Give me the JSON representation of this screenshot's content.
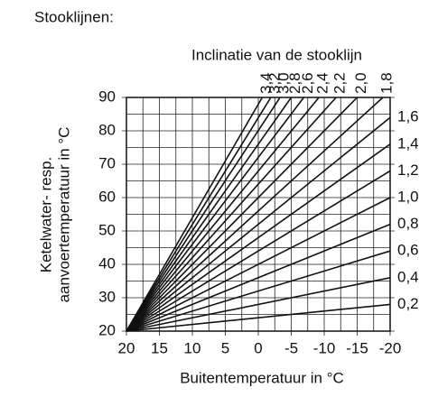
{
  "chart_data": {
    "type": "line",
    "title": "Stooklijnen:",
    "subtitle": "Inclinatie van de stooklijn",
    "x_label": "Buitentemperatuur in °C",
    "y_label": [
      "Ketelwater- resp.",
      "aanvoertemperatuur in °C"
    ],
    "xlim": [
      20,
      -20
    ],
    "ylim": [
      20,
      90
    ],
    "xticks": [
      20,
      15,
      10,
      5,
      0,
      -5,
      -10,
      -15,
      -20
    ],
    "yticks": [
      20,
      30,
      40,
      50,
      60,
      70,
      80,
      90
    ],
    "x_gridlines": [
      17.5,
      12.5,
      7.5,
      2.5,
      -2.5,
      -7.5,
      -12.5,
      -17.5
    ],
    "y_gridlines": [
      25,
      35,
      45,
      55,
      65,
      75,
      85
    ],
    "color": "#111111",
    "series": [
      {
        "name": "0,2",
        "x": [
          20,
          -20
        ],
        "values": [
          20,
          28
        ]
      },
      {
        "name": "0,4",
        "x": [
          20,
          -20
        ],
        "values": [
          20,
          36
        ]
      },
      {
        "name": "0,6",
        "x": [
          20,
          -20
        ],
        "values": [
          20,
          44
        ]
      },
      {
        "name": "0,8",
        "x": [
          20,
          -20
        ],
        "values": [
          20,
          52
        ]
      },
      {
        "name": "1,0",
        "x": [
          20,
          -20
        ],
        "values": [
          20,
          60
        ]
      },
      {
        "name": "1,2",
        "x": [
          20,
          -20
        ],
        "values": [
          20,
          68
        ]
      },
      {
        "name": "1,4",
        "x": [
          20,
          -20
        ],
        "values": [
          20,
          76
        ]
      },
      {
        "name": "1,6",
        "x": [
          20,
          -20
        ],
        "values": [
          20,
          84
        ]
      },
      {
        "name": "1,8",
        "x": [
          20,
          -18.9
        ],
        "values": [
          20,
          90
        ]
      },
      {
        "name": "2,0",
        "x": [
          20,
          -15
        ],
        "values": [
          20,
          90
        ]
      },
      {
        "name": "2,2",
        "x": [
          20,
          -11.8
        ],
        "values": [
          20,
          90
        ]
      },
      {
        "name": "2,4",
        "x": [
          20,
          -9.2
        ],
        "values": [
          20,
          90
        ]
      },
      {
        "name": "2,6",
        "x": [
          20,
          -6.9
        ],
        "values": [
          20,
          90
        ]
      },
      {
        "name": "2,8",
        "x": [
          20,
          -5
        ],
        "values": [
          20,
          90
        ]
      },
      {
        "name": "3,0",
        "x": [
          20,
          -3.3
        ],
        "values": [
          20,
          90
        ]
      },
      {
        "name": "3,2",
        "x": [
          20,
          -1.9
        ],
        "values": [
          20,
          90
        ]
      },
      {
        "name": "3,4",
        "x": [
          20,
          -0.6
        ],
        "values": [
          20,
          90
        ]
      }
    ]
  }
}
